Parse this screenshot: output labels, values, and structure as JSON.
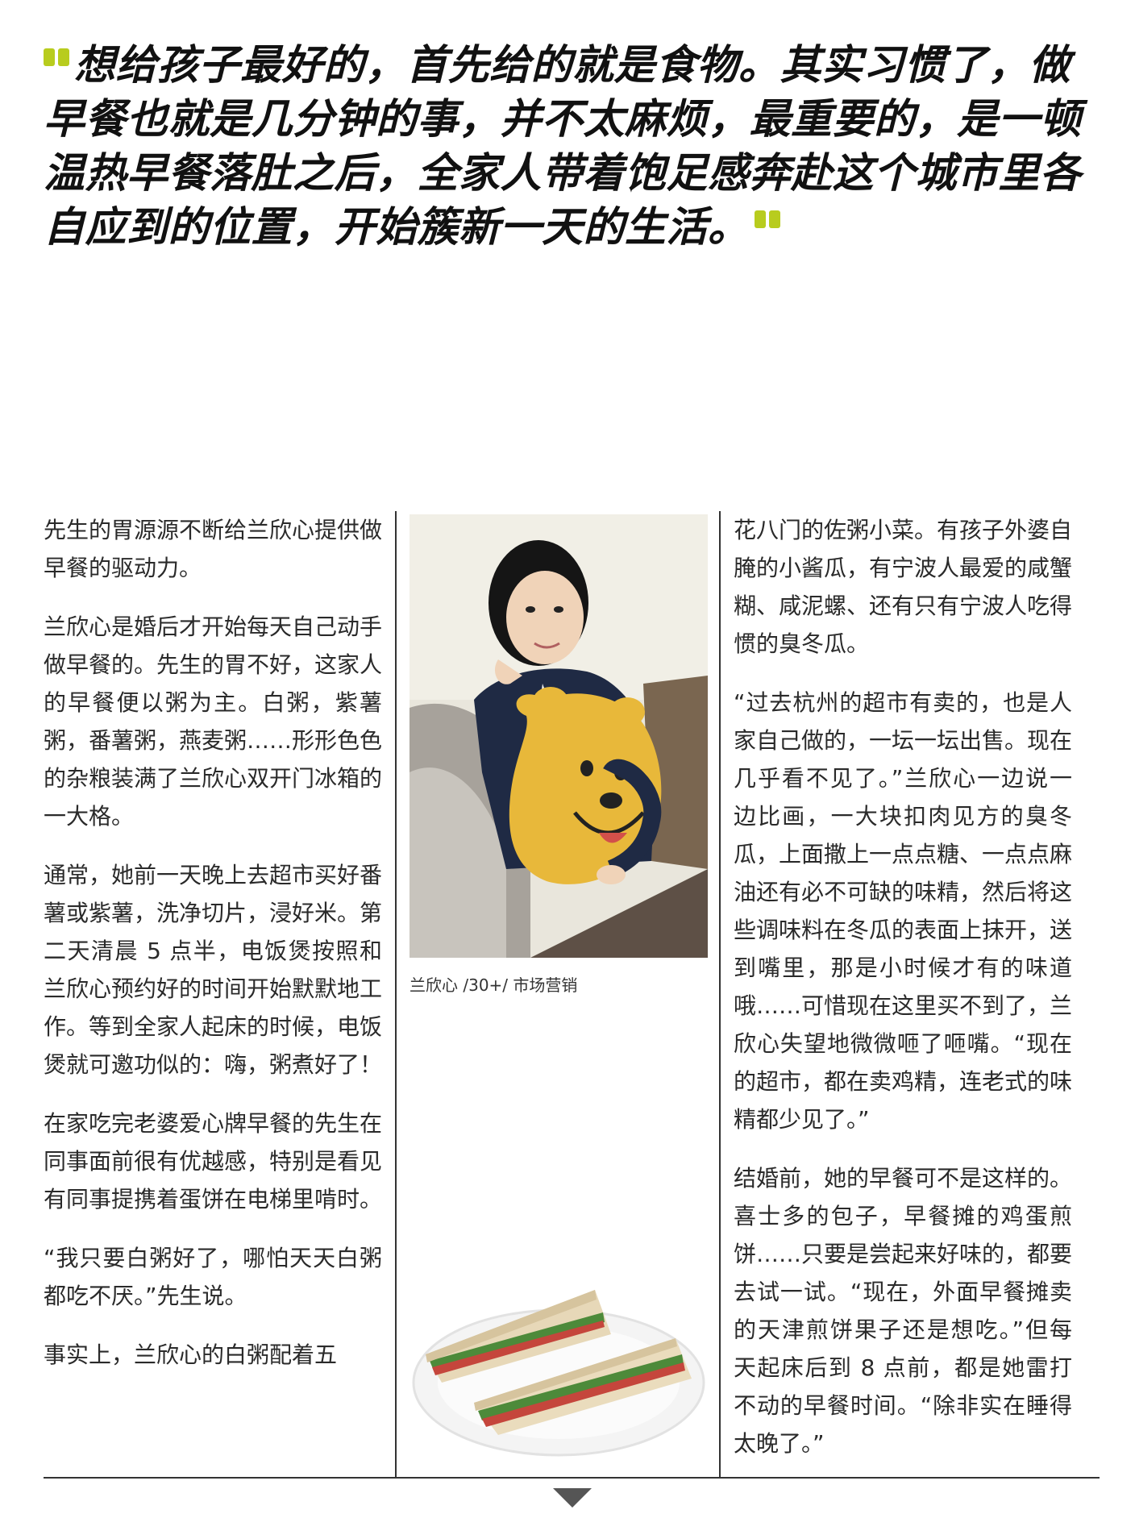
{
  "pull_quote": "想给孩子最好的，首先给的就是食物。其实习惯了，做早餐也就是几分钟的事，并不太麻烦，最重要的，是一顿温热早餐落肚之后，全家人带着饱足感奔赴这个城市里各自应到的位置，开始簇新一天的生活。",
  "colors": {
    "accent": "#b8cc1e",
    "rule": "#333333"
  },
  "column1": {
    "paragraphs": [
      "先生的胃源源不断给兰欣心提供做早餐的驱动力。",
      "兰欣心是婚后才开始每天自己动手做早餐的。先生的胃不好，这家人的早餐便以粥为主。白粥，紫薯粥，番薯粥，燕麦粥……形形色色的杂粮装满了兰欣心双开门冰箱的一大格。",
      "通常，她前一天晚上去超市买好番薯或紫薯，洗净切片，浸好米。第二天清晨 5 点半，电饭煲按照和兰欣心预约好的时间开始默默地工作。等到全家人起床的时候，电饭煲就可邀功似的：嗨，粥煮好了！",
      "在家吃完老婆爱心牌早餐的先生在同事面前很有优越感，特别是看见有同事提携着蛋饼在电梯里啃时。",
      "“我只要白粥好了，哪怕天天白粥都吃不厌。”先生说。",
      "事实上，兰欣心的白粥配着五"
    ]
  },
  "column2": {
    "caption": "兰欣心 /30+/ 市场营销"
  },
  "column3": {
    "paragraphs": [
      "花八门的佐粥小菜。有孩子外婆自腌的小酱瓜，有宁波人最爱的咸蟹糊、咸泥螺、还有只有宁波人吃得惯的臭冬瓜。",
      "“过去杭州的超市有卖的，也是人家自己做的，一坛一坛出售。现在几乎看不见了。”兰欣心一边说一边比画，一大块扣肉见方的臭冬瓜，上面撒上一点点糖、一点点麻油还有必不可缺的味精，然后将这些调味料在冬瓜的表面上抹开，送到嘴里，那是小时候才有的味道哦……可惜现在这里买不到了，兰欣心失望地微微咂了咂嘴。“现在的超市，都在卖鸡精，连老式的味精都少见了。”",
      "结婚前，她的早餐可不是这样的。喜士多的包子，早餐摊的鸡蛋煎饼……只要是尝起来好味的，都要去试一试。“现在，外面早餐摊卖的天津煎饼果子还是想吃。”但每天起床后到 8 点前，都是她雷打不动的早餐时间。“除非实在睡得太晚了。”"
    ]
  }
}
